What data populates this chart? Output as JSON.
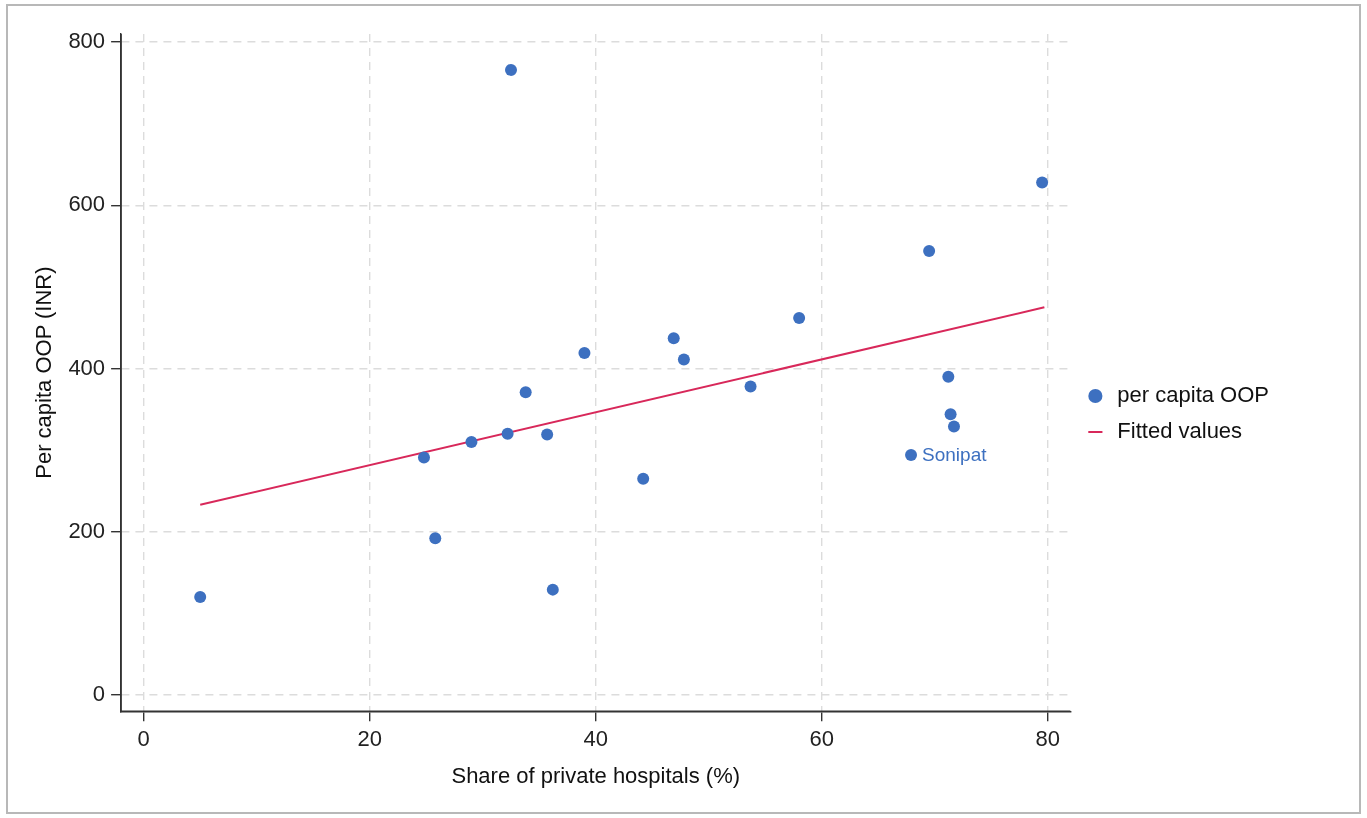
{
  "chart_data": {
    "type": "scatter",
    "xlabel": "Share of private hospitals (%)",
    "ylabel": "Per capita OOP (INR)",
    "xlim": [
      -2,
      82
    ],
    "ylim": [
      -20,
      810
    ],
    "xticks": [
      0,
      20,
      40,
      60,
      80
    ],
    "yticks": [
      0,
      200,
      400,
      600,
      800
    ],
    "grid": true,
    "legend": "right",
    "marker": "circle",
    "series": [
      {
        "name": "per capita OOP",
        "type": "scatter",
        "color": "#3d70c0",
        "x": [
          5.0,
          24.8,
          25.8,
          29.0,
          32.2,
          32.5,
          33.8,
          35.7,
          36.2,
          39.0,
          44.2,
          46.9,
          47.8,
          53.7,
          58.0,
          69.5,
          71.2,
          71.4,
          71.7,
          67.9,
          79.5
        ],
        "values": [
          120,
          291,
          192,
          310,
          320,
          766,
          371,
          319,
          129,
          419,
          265,
          437,
          411,
          378,
          462,
          544,
          390,
          344,
          329,
          294,
          628
        ]
      },
      {
        "name": "Fitted values",
        "type": "line",
        "color": "#d8285a",
        "marker": "none",
        "x": [
          5.0,
          79.7
        ],
        "values": [
          233,
          475
        ]
      }
    ],
    "annotations": [
      {
        "text": "Sonipat",
        "x": 67.9,
        "y": 294
      }
    ]
  }
}
